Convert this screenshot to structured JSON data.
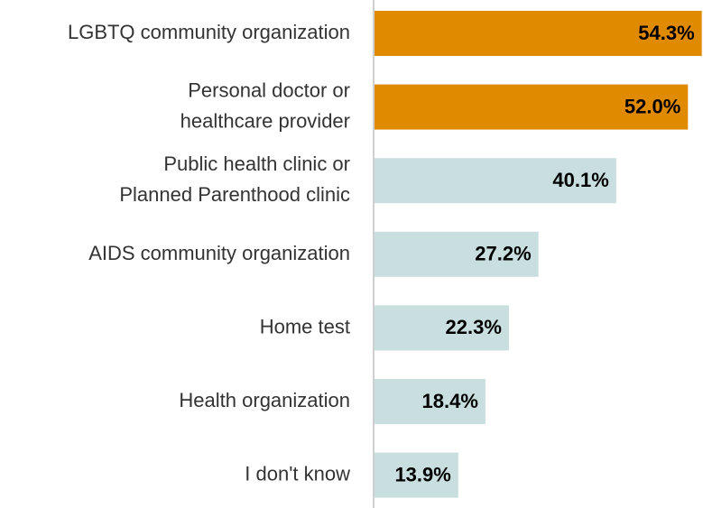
{
  "chart_data": {
    "type": "barh",
    "categories": [
      [
        "LGBTQ community organization"
      ],
      [
        "Personal doctor or",
        "healthcare provider"
      ],
      [
        "Public health clinic or",
        "Planned Parenthood clinic"
      ],
      [
        "AIDS community organization"
      ],
      [
        "Home test"
      ],
      [
        "Health organization"
      ],
      [
        "I don't know"
      ]
    ],
    "values": [
      54.3,
      52.0,
      40.1,
      27.2,
      22.3,
      18.4,
      13.9
    ],
    "value_labels": [
      "54.3%",
      "52.0%",
      "40.1%",
      "27.2%",
      "22.3%",
      "18.4%",
      "13.9%"
    ],
    "colors": [
      "#e08a00",
      "#e08a00",
      "#c9dedf",
      "#c9dedf",
      "#c9dedf",
      "#c9dedf",
      "#c9dedf"
    ],
    "xlim": [
      0,
      54.5
    ]
  }
}
